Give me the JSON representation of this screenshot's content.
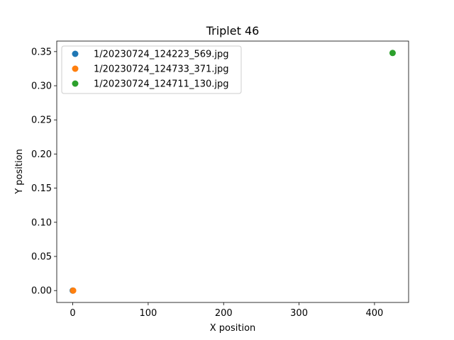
{
  "chart_data": {
    "type": "scatter",
    "title": "Triplet 46",
    "xlabel": "X position",
    "ylabel": "Y position",
    "xlim": [
      -21.2,
      445.2
    ],
    "ylim": [
      -0.0174,
      0.3654
    ],
    "xticks": [
      0,
      100,
      200,
      300,
      400
    ],
    "yticks": [
      0.0,
      0.05,
      0.1,
      0.15,
      0.2,
      0.25,
      0.3,
      0.35
    ],
    "xtick_labels": [
      "0",
      "100",
      "200",
      "300",
      "400"
    ],
    "ytick_labels": [
      "0.00",
      "0.05",
      "0.10",
      "0.15",
      "0.20",
      "0.25",
      "0.30",
      "0.35"
    ],
    "grid": false,
    "legend_position": "upper-left",
    "series": [
      {
        "name": "1/20230724_124223_569.jpg",
        "color": "#1f77b4",
        "points": [
          [
            0,
            0
          ]
        ]
      },
      {
        "name": "1/20230724_124733_371.jpg",
        "color": "#ff7f0e",
        "points": [
          [
            0.5,
            0
          ]
        ]
      },
      {
        "name": "1/20230724_124711_130.jpg",
        "color": "#2ca02c",
        "points": [
          [
            424,
            0.348
          ]
        ]
      }
    ]
  }
}
